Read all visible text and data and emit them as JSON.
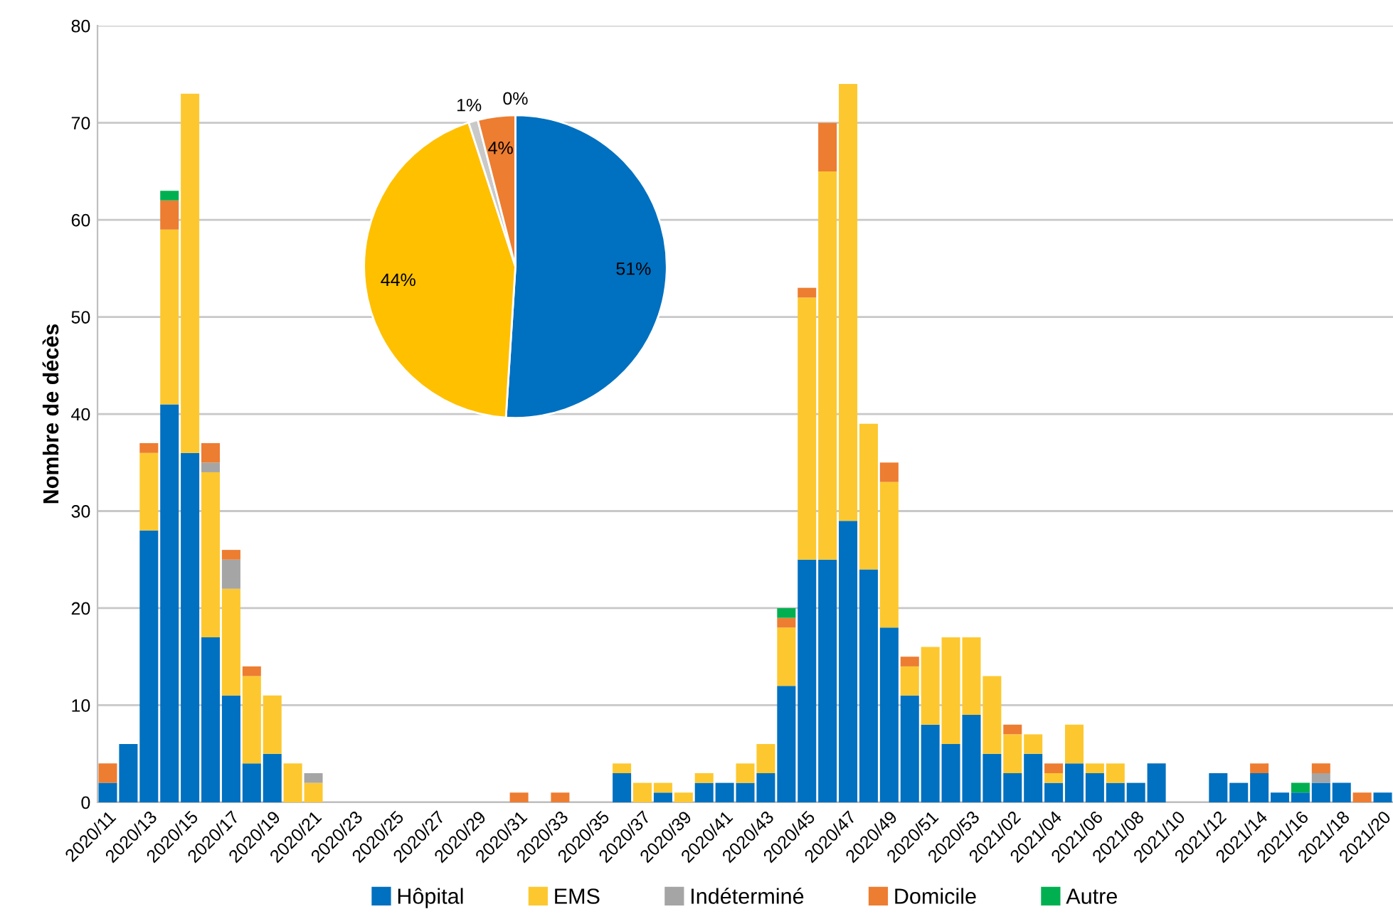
{
  "chart_data": [
    {
      "type": "bar",
      "stacked": true,
      "ylabel": "Nombre de décès",
      "ylim": [
        0,
        80
      ],
      "yticks": [
        0,
        10,
        20,
        30,
        40,
        50,
        60,
        70,
        80
      ],
      "grid": "y",
      "legend": "bottom",
      "categories": [
        "2020/11",
        null,
        "2020/13",
        null,
        "2020/15",
        null,
        "2020/17",
        null,
        "2020/19",
        null,
        "2020/21",
        null,
        "2020/23",
        null,
        "2020/25",
        null,
        "2020/27",
        null,
        "2020/29",
        null,
        "2020/31",
        null,
        "2020/33",
        null,
        "2020/35",
        null,
        "2020/37",
        null,
        "2020/39",
        null,
        "2020/41",
        null,
        "2020/43",
        null,
        "2020/45",
        null,
        "2020/47",
        null,
        "2020/49",
        null,
        "2020/51",
        null,
        "2020/53",
        null,
        "2021/02",
        null,
        "2021/04",
        null,
        "2021/06",
        null,
        "2021/08",
        null,
        "2021/10",
        null,
        "2021/12",
        null,
        "2021/14",
        null,
        "2021/16",
        null,
        "2021/18",
        null,
        "2021/20"
      ],
      "series": [
        {
          "name": "Hôpital",
          "color": "#0070c0",
          "values": [
            2,
            6,
            28,
            41,
            36,
            17,
            11,
            4,
            5,
            0,
            0,
            0,
            0,
            0,
            0,
            0,
            0,
            0,
            0,
            0,
            0,
            0,
            0,
            0,
            0,
            3,
            0,
            1,
            0,
            2,
            2,
            2,
            3,
            12,
            25,
            25,
            29,
            24,
            18,
            11,
            8,
            6,
            9,
            5,
            3,
            5,
            2,
            4,
            3,
            2,
            2,
            4,
            0,
            0,
            3,
            2,
            3,
            1,
            1,
            2,
            2,
            0,
            1
          ]
        },
        {
          "name": "EMS",
          "color": "#fdc82f",
          "values": [
            0,
            0,
            8,
            18,
            37,
            17,
            11,
            9,
            6,
            4,
            2,
            0,
            0,
            0,
            0,
            0,
            0,
            0,
            0,
            0,
            0,
            0,
            0,
            0,
            0,
            1,
            2,
            1,
            1,
            1,
            0,
            2,
            3,
            6,
            27,
            40,
            45,
            15,
            15,
            3,
            8,
            11,
            8,
            8,
            4,
            2,
            1,
            4,
            1,
            2,
            0,
            0,
            0,
            0,
            0,
            0,
            0,
            0,
            0,
            0,
            0,
            0,
            0
          ]
        },
        {
          "name": "Indéterminé",
          "color": "#a5a5a5",
          "values": [
            0,
            0,
            0,
            0,
            0,
            1,
            3,
            0,
            0,
            0,
            1,
            0,
            0,
            0,
            0,
            0,
            0,
            0,
            0,
            0,
            0,
            0,
            0,
            0,
            0,
            0,
            0,
            0,
            0,
            0,
            0,
            0,
            0,
            0,
            0,
            0,
            0,
            0,
            0,
            0,
            0,
            0,
            0,
            0,
            0,
            0,
            0,
            0,
            0,
            0,
            0,
            0,
            0,
            0,
            0,
            0,
            0,
            0,
            0,
            1,
            0,
            0,
            0
          ]
        },
        {
          "name": "Domicile",
          "color": "#ed7d31",
          "values": [
            2,
            0,
            1,
            3,
            0,
            2,
            1,
            1,
            0,
            0,
            0,
            0,
            0,
            0,
            0,
            0,
            0,
            0,
            0,
            0,
            1,
            0,
            1,
            0,
            0,
            0,
            0,
            0,
            0,
            0,
            0,
            0,
            0,
            1,
            1,
            5,
            0,
            0,
            2,
            1,
            0,
            0,
            0,
            0,
            1,
            0,
            1,
            0,
            0,
            0,
            0,
            0,
            0,
            0,
            0,
            0,
            1,
            0,
            0,
            1,
            0,
            1,
            0
          ]
        },
        {
          "name": "Autre",
          "color": "#00b050",
          "values": [
            0,
            0,
            0,
            1,
            0,
            0,
            0,
            0,
            0,
            0,
            0,
            0,
            0,
            0,
            0,
            0,
            0,
            0,
            0,
            0,
            0,
            0,
            0,
            0,
            0,
            0,
            0,
            0,
            0,
            0,
            0,
            0,
            0,
            1,
            0,
            0,
            0,
            0,
            0,
            0,
            0,
            0,
            0,
            0,
            0,
            0,
            0,
            0,
            0,
            0,
            0,
            0,
            0,
            0,
            0,
            0,
            0,
            0,
            1,
            0,
            0,
            0,
            0
          ]
        }
      ]
    },
    {
      "type": "pie",
      "categories": [
        null,
        null,
        null,
        null,
        null
      ],
      "values": [
        51,
        44,
        1,
        4,
        0
      ],
      "value_labels": [
        "51%",
        "44%",
        "1%",
        "4%",
        "0%"
      ],
      "colors": [
        "#0070c0",
        "#ffc000",
        "#c9c9c9",
        "#ed7d31",
        "#00b050"
      ]
    }
  ]
}
